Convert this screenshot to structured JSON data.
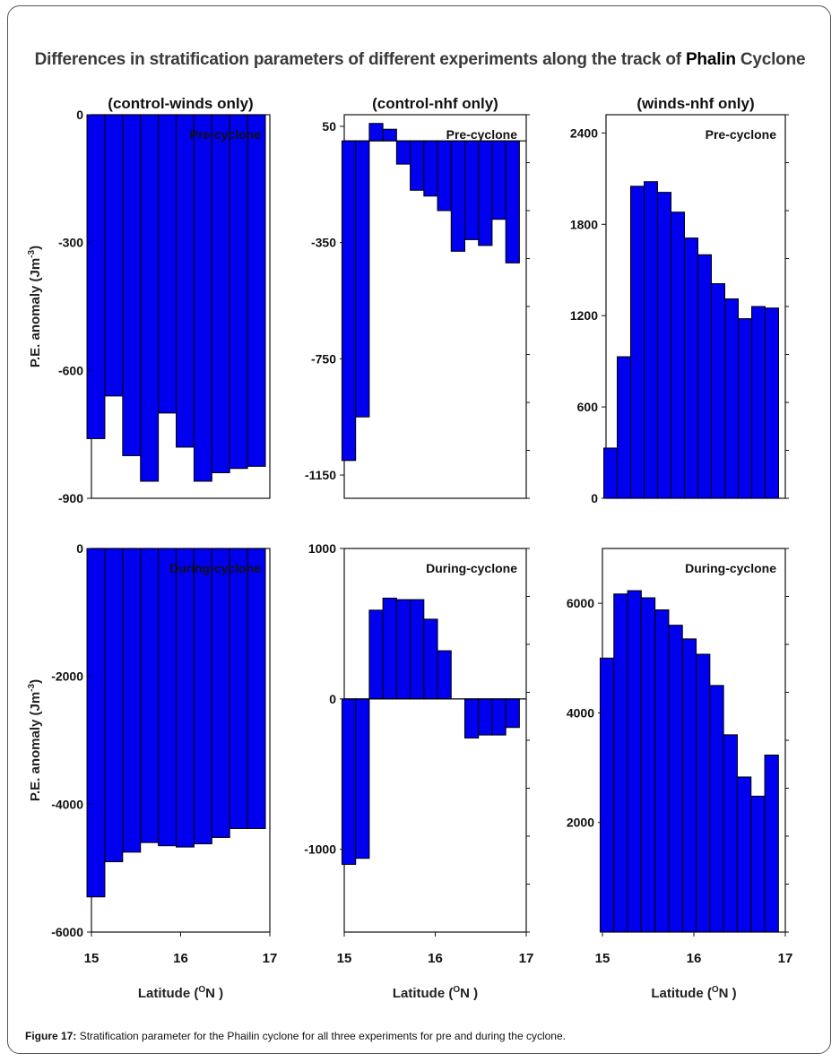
{
  "figure": {
    "title_prefix": "Differences in stratification parameters of different experiments along the track of ",
    "title_emphasis": "Phalin",
    "title_suffix": " Cyclone",
    "caption_label": "Figure 17:",
    "caption_text": " Stratification parameter for the Phailin cyclone for all three experiments for pre and during the cyclone.",
    "ylabel_main": "P.E. anomaly (Jm",
    "ylabel_sup": "-3",
    "ylabel_end": ")",
    "xlabel_main": "Latitude (",
    "xlabel_sup": "O",
    "xlabel_end": "N )",
    "bar_color": "#0000ee",
    "bar_stroke": "#000000"
  },
  "chart_data": [
    {
      "type": "bar",
      "title": "(control-winds only)",
      "annotation": "Pre-cyclone",
      "x": [
        15.05,
        15.25,
        15.45,
        15.65,
        15.85,
        16.05,
        16.25,
        16.45,
        16.65,
        16.85
      ],
      "values": [
        -760,
        -660,
        -800,
        -860,
        -700,
        -780,
        -860,
        -840,
        -830,
        -825
      ],
      "ylim": [
        -900,
        0
      ],
      "yticks": [
        0,
        -300,
        -600,
        -900
      ],
      "xlim": [
        15,
        17
      ],
      "xticks": [
        15,
        16,
        17
      ],
      "ylabel": "P.E. anomaly (Jm-3)",
      "xlabel": ""
    },
    {
      "type": "bar",
      "title": "(control-nhf only)",
      "annotation": "Pre-cyclone",
      "x": [
        15.05,
        15.2,
        15.35,
        15.5,
        15.65,
        15.8,
        15.95,
        16.1,
        16.25,
        16.4,
        16.55,
        16.7,
        16.85
      ],
      "values": [
        -1100,
        -950,
        60,
        40,
        -80,
        -170,
        -190,
        -240,
        -380,
        -340,
        -360,
        -270,
        -420
      ],
      "ylim": [
        -1230,
        90
      ],
      "yticks": [
        50,
        -350,
        -750,
        -1150
      ],
      "xlim": [
        15,
        17
      ],
      "xticks": [
        15,
        16,
        17
      ],
      "ylabel": "",
      "xlabel": ""
    },
    {
      "type": "bar",
      "title": "(winds-nhf only)",
      "annotation": "Pre-cyclone",
      "x": [
        15.05,
        15.2,
        15.35,
        15.5,
        15.65,
        15.8,
        15.95,
        16.1,
        16.25,
        16.4,
        16.55,
        16.7,
        16.85
      ],
      "values": [
        330,
        930,
        2050,
        2080,
        2010,
        1880,
        1710,
        1600,
        1410,
        1310,
        1180,
        1260,
        1250
      ],
      "ylim": [
        0,
        2520
      ],
      "yticks": [
        2400,
        1800,
        1200,
        600,
        0
      ],
      "xlim": [
        15,
        17
      ],
      "xticks": [
        15,
        16,
        17
      ],
      "ylabel": "",
      "xlabel": ""
    },
    {
      "type": "bar",
      "title": "",
      "annotation": "During-cyclone",
      "x": [
        15.05,
        15.25,
        15.45,
        15.65,
        15.85,
        16.05,
        16.25,
        16.45,
        16.65,
        16.85
      ],
      "values": [
        -5450,
        -4900,
        -4750,
        -4600,
        -4650,
        -4670,
        -4620,
        -4520,
        -4380,
        -4380
      ],
      "ylim": [
        -6000,
        0
      ],
      "yticks": [
        0,
        -2000,
        -4000,
        -6000
      ],
      "xlim": [
        15,
        17
      ],
      "xticks": [
        15,
        16,
        17
      ],
      "ylabel": "P.E. anomaly (Jm-3)",
      "xlabel": "Latitude (ON )"
    },
    {
      "type": "bar",
      "title": "",
      "annotation": "During-cyclone",
      "x": [
        15.05,
        15.2,
        15.35,
        15.5,
        15.65,
        15.8,
        15.95,
        16.1,
        16.25,
        16.4,
        16.55,
        16.7,
        16.85
      ],
      "values": [
        -1100,
        -1060,
        590,
        670,
        660,
        660,
        530,
        320,
        0,
        -260,
        -240,
        -240,
        -190
      ],
      "ylim": [
        -1550,
        1000
      ],
      "yticks": [
        1000,
        0,
        -1000
      ],
      "xlim": [
        15,
        17
      ],
      "xticks": [
        15,
        16,
        17
      ],
      "ylabel": "",
      "xlabel": "Latitude (ON )"
    },
    {
      "type": "bar",
      "title": "",
      "annotation": "During-cyclone",
      "x": [
        15.05,
        15.2,
        15.35,
        15.5,
        15.65,
        15.8,
        15.95,
        16.1,
        16.25,
        16.4,
        16.55,
        16.7,
        16.85
      ],
      "values": [
        5000,
        6170,
        6230,
        6100,
        5880,
        5600,
        5350,
        5070,
        4500,
        3600,
        2830,
        2480,
        3230
      ],
      "ylim": [
        0,
        7000
      ],
      "yticks": [
        6000,
        4000,
        2000
      ],
      "xlim": [
        15,
        17
      ],
      "xticks": [
        15,
        16,
        17
      ],
      "ylabel": "",
      "xlabel": "Latitude (ON )"
    }
  ]
}
